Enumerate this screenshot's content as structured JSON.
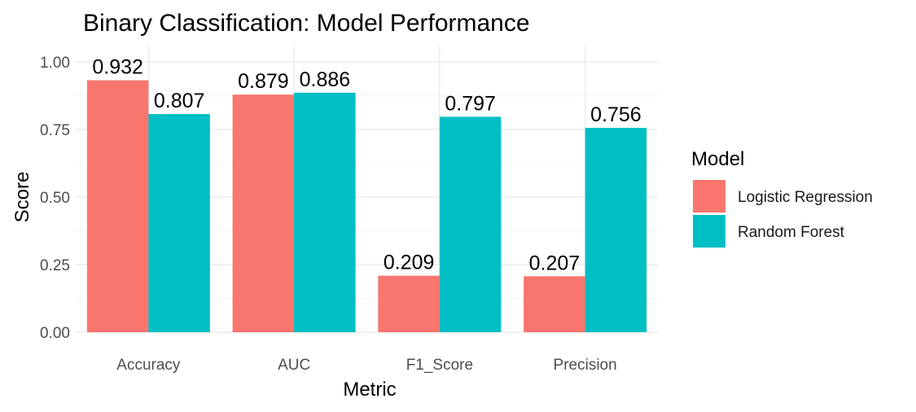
{
  "chart_data": {
    "type": "bar",
    "title": "Binary Classification: Model Performance",
    "xlabel": "Metric",
    "ylabel": "Score",
    "categories": [
      "Accuracy",
      "AUC",
      "F1_Score",
      "Precision"
    ],
    "series": [
      {
        "name": "Logistic Regression",
        "color": "#F8766D",
        "values": [
          0.932,
          0.879,
          0.209,
          0.207
        ],
        "labels": [
          "0.932",
          "0.879",
          "0.209",
          "0.207"
        ]
      },
      {
        "name": "Random Forest",
        "color": "#00BFC4",
        "values": [
          0.807,
          0.886,
          0.797,
          0.756
        ],
        "labels": [
          "0.807",
          "0.886",
          "0.797",
          "0.756"
        ]
      }
    ],
    "ylim": [
      0,
      1
    ],
    "yticks": [
      0,
      0.25,
      0.5,
      0.75,
      1
    ],
    "ytick_labels": [
      "0.00",
      "0.25",
      "0.50",
      "0.75",
      "1.00"
    ],
    "legend_title": "Model",
    "legend_position": "right",
    "grid": true
  }
}
